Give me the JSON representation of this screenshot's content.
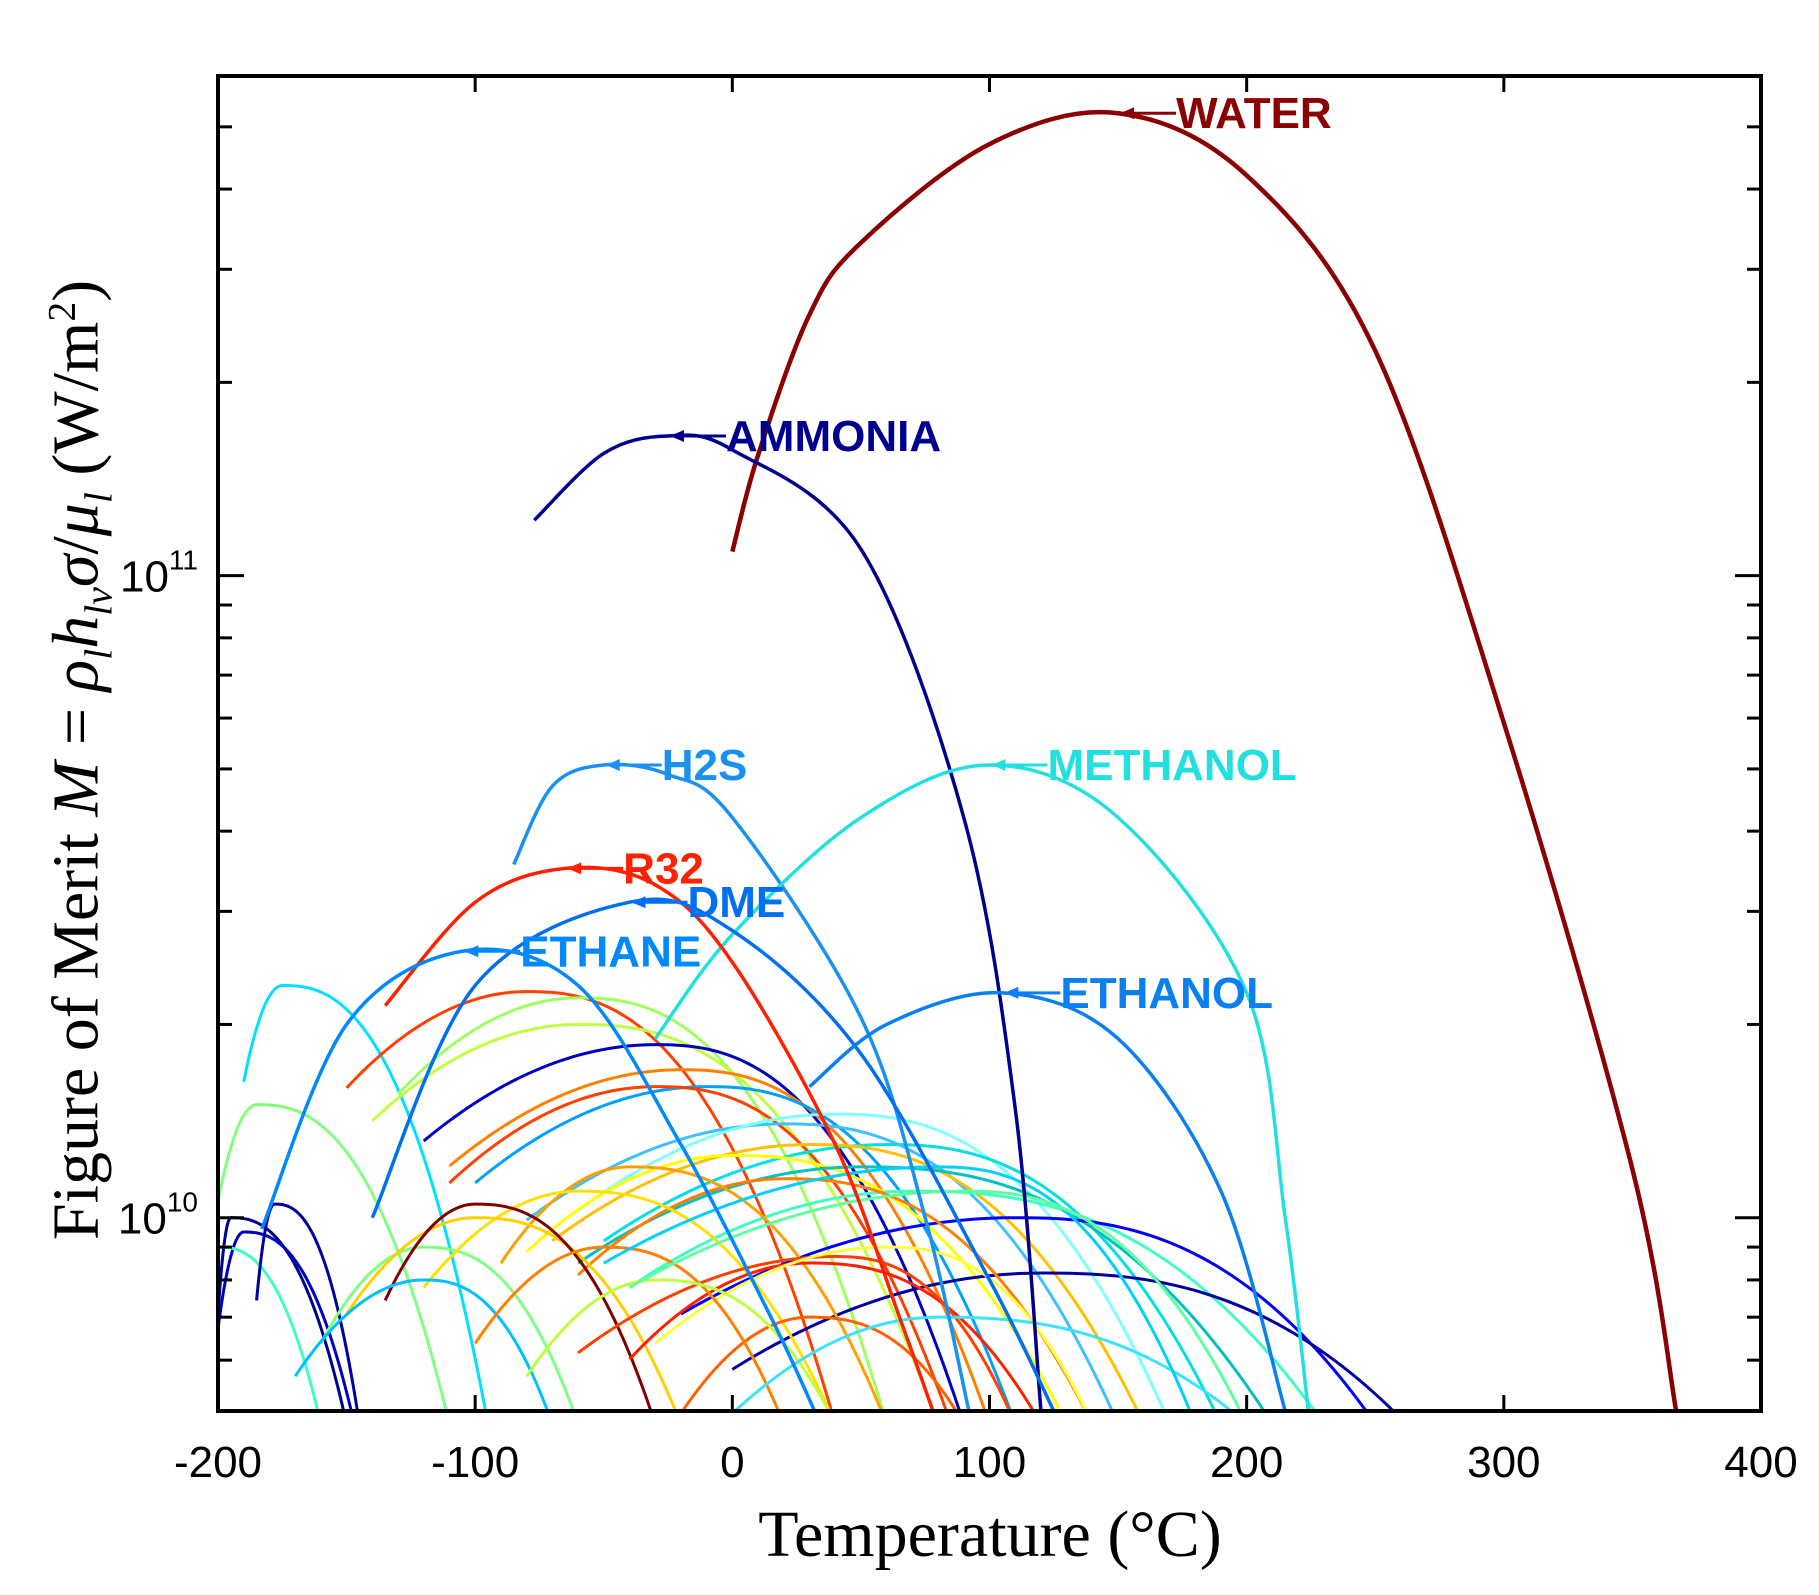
{
  "chart_data": {
    "type": "line",
    "title": "",
    "xlabel": "Temperature (°C)",
    "ylabel": {
      "prefix": "Figure of Merit ",
      "M": "M",
      "eq": " = ",
      "rho": "ρ",
      "l1": "l",
      "h": "h",
      "lv": "lv",
      "sigma": "σ",
      "slash": "/",
      "mu": "μ",
      "l2": "l",
      "unit_open": " (W/m",
      "unit_exp": "2",
      "unit_close": ")"
    },
    "xlim": [
      -200,
      400
    ],
    "ylim": [
      5000000000.0,
      600000000000.0
    ],
    "yscale": "log",
    "x_ticks": [
      "-200",
      "-100",
      "0",
      "100",
      "200",
      "300",
      "400"
    ],
    "x_tick_values": [
      -200,
      -100,
      0,
      100,
      200,
      300,
      400
    ],
    "y_ticks": [
      {
        "base": "10",
        "exp": "10",
        "value": 10000000000.0
      },
      {
        "base": "10",
        "exp": "11",
        "value": 100000000000.0
      }
    ],
    "grid": false,
    "labeled_series": [
      {
        "name": "WATER",
        "color": "#8b0000",
        "peak": [
          150,
          525000000000.0
        ],
        "points": [
          [
            0,
            109000000000.0
          ],
          [
            10,
            154000000000.0
          ],
          [
            30,
            255000000000.0
          ],
          [
            50,
            330000000000.0
          ],
          [
            100,
            470000000000.0
          ],
          [
            150,
            525000000000.0
          ],
          [
            200,
            420000000000.0
          ],
          [
            250,
            224000000000.0
          ],
          [
            300,
            59000000000.0
          ],
          [
            350,
            11900000000.0
          ],
          [
            367,
            5000000000.0
          ]
        ]
      },
      {
        "name": "AMMONIA",
        "color": "#00008f",
        "peak": [
          -25,
          165000000000.0
        ],
        "points": [
          [
            -77,
            122000000000.0
          ],
          [
            -50,
            155000000000.0
          ],
          [
            -25,
            165000000000.0
          ],
          [
            0,
            157000000000.0
          ],
          [
            50,
            110000000000.0
          ],
          [
            90,
            42000000000.0
          ],
          [
            110,
            14800000000.0
          ],
          [
            120,
            5000000000.0
          ]
        ]
      },
      {
        "name": "H2S",
        "color": "#1a90f0",
        "peak": [
          -50,
          50700000000.0
        ],
        "points": [
          [
            -85,
            35500000000.0
          ],
          [
            -70,
            47000000000.0
          ],
          [
            -50,
            50700000000.0
          ],
          [
            -25,
            49000000000.0
          ],
          [
            0,
            42000000000.0
          ],
          [
            50,
            20500000000.0
          ],
          [
            75,
            10000000000.0
          ],
          [
            92,
            5000000000.0
          ]
        ]
      },
      {
        "name": "METHANOL",
        "color": "#20e0e0",
        "peak": [
          100,
          50700000000.0
        ],
        "points": [
          [
            -30,
            19000000000.0
          ],
          [
            0,
            27600000000.0
          ],
          [
            50,
            42000000000.0
          ],
          [
            100,
            50700000000.0
          ],
          [
            150,
            42000000000.0
          ],
          [
            200,
            22400000000.0
          ],
          [
            215,
            10000000000.0
          ],
          [
            224,
            5000000000.0
          ]
        ]
      },
      {
        "name": "R32",
        "color": "#ff2000",
        "peak": [
          -65,
          35000000000.0
        ],
        "points": [
          [
            -135,
            21400000000.0
          ],
          [
            -100,
            31000000000.0
          ],
          [
            -65,
            35000000000.0
          ],
          [
            -30,
            33000000000.0
          ],
          [
            0,
            25000000000.0
          ],
          [
            40,
            13000000000.0
          ],
          [
            65,
            7000000000.0
          ],
          [
            78,
            5000000000.0
          ]
        ]
      },
      {
        "name": "DME",
        "color": "#0070f0",
        "peak": [
          -40,
          31000000000.0
        ],
        "points": [
          [
            -140,
            10000000000.0
          ],
          [
            -100,
            23000000000.0
          ],
          [
            -40,
            31000000000.0
          ],
          [
            0,
            28000000000.0
          ],
          [
            50,
            18000000000.0
          ],
          [
            100,
            8000000000.0
          ],
          [
            125,
            5000000000.0
          ]
        ]
      },
      {
        "name": "ETHANE",
        "color": "#0088ff",
        "peak": [
          -105,
          26000000000.0
        ],
        "points": [
          [
            -183,
            9600000000.0
          ],
          [
            -150,
            20000000000.0
          ],
          [
            -105,
            26000000000.0
          ],
          [
            -60,
            23000000000.0
          ],
          [
            -20,
            13000000000.0
          ],
          [
            15,
            7000000000.0
          ],
          [
            32,
            5000000000.0
          ]
        ]
      },
      {
        "name": "ETHANOL",
        "color": "#0a80f0",
        "peak": [
          105,
          22400000000.0
        ],
        "points": [
          [
            30,
            16000000000.0
          ],
          [
            60,
            20000000000.0
          ],
          [
            105,
            22400000000.0
          ],
          [
            150,
            19000000000.0
          ],
          [
            190,
            11000000000.0
          ],
          [
            215,
            5000000000.0
          ]
        ]
      }
    ],
    "unlabeled_series": [
      [
        -200,
        -195,
        10000000000.0,
        -150,
        "#00008f"
      ],
      [
        -200,
        -190,
        9500000000.0,
        -147,
        "#0000c0"
      ],
      [
        -200,
        -200,
        9000000000.0,
        -160,
        "#40ffc0"
      ],
      [
        -200,
        -185,
        15000000000.0,
        -110,
        "#80ff80"
      ],
      [
        -185,
        -178,
        10500000000.0,
        -145,
        "#0000a0"
      ],
      [
        -190,
        -175,
        23000000000.0,
        -95,
        "#00e0ff"
      ],
      [
        -160,
        -120,
        9000000000.0,
        -60,
        "#80ff80"
      ],
      [
        -150,
        -80,
        22500000000.0,
        40,
        "#ff4000"
      ],
      [
        -130,
        -60,
        22000000000.0,
        60,
        "#a0ff60"
      ],
      [
        -140,
        -60,
        20000000000.0,
        80,
        "#c0ff40"
      ],
      [
        -120,
        -30,
        18600000000.0,
        90,
        "#0000c0"
      ],
      [
        -110,
        -20,
        17000000000.0,
        100,
        "#ff8000"
      ],
      [
        -100,
        -10,
        16000000000.0,
        110,
        "#00a0ff"
      ],
      [
        -110,
        -30,
        16000000000.0,
        85,
        "#ff4000"
      ],
      [
        -80,
        20,
        14000000000.0,
        150,
        "#40c0ff"
      ],
      [
        -60,
        40,
        14500000000.0,
        170,
        "#80ffff"
      ],
      [
        -50,
        60,
        13000000000.0,
        190,
        "#00e0e0"
      ],
      [
        -70,
        30,
        13000000000.0,
        160,
        "#ffc000"
      ],
      [
        -80,
        0,
        12500000000.0,
        130,
        "#ffff00"
      ],
      [
        -60,
        50,
        12000000000.0,
        210,
        "#00c0c0"
      ],
      [
        -40,
        70,
        11000000000.0,
        230,
        "#40ffc0"
      ],
      [
        -20,
        110,
        10000000000.0,
        250,
        "#0000ff"
      ],
      [
        0,
        120,
        8200000000.0,
        262,
        "#0000a0"
      ],
      [
        -60,
        20,
        11500000000.0,
        140,
        "#ff8000"
      ],
      [
        -90,
        -40,
        12000000000.0,
        60,
        "#ffa000"
      ],
      [
        -120,
        -60,
        11000000000.0,
        40,
        "#ffe000"
      ],
      [
        -150,
        -100,
        10000000000.0,
        -20,
        "#ffd000"
      ],
      [
        -135,
        -100,
        10500000000.0,
        -30,
        "#800000"
      ],
      [
        -40,
        30,
        8500000000.0,
        120,
        "#ff2000"
      ],
      [
        -60,
        40,
        8700000000.0,
        110,
        "#ff4000"
      ],
      [
        -20,
        30,
        7000000000.0,
        90,
        "#ff6000"
      ],
      [
        -30,
        60,
        9000000000.0,
        140,
        "#ffff40"
      ],
      [
        -170,
        -120,
        8000000000.0,
        -70,
        "#00c0ff"
      ],
      [
        -100,
        -50,
        9000000000.0,
        20,
        "#ff8000"
      ],
      [
        -80,
        -30,
        8000000000.0,
        40,
        "#c0ff40"
      ],
      [
        0,
        80,
        7000000000.0,
        200,
        "#40e0ff"
      ],
      [
        -50,
        80,
        12000000000.0,
        180,
        "#00d0ff"
      ],
      [
        -40,
        90,
        11000000000.0,
        200,
        "#60ffa0"
      ]
    ]
  }
}
